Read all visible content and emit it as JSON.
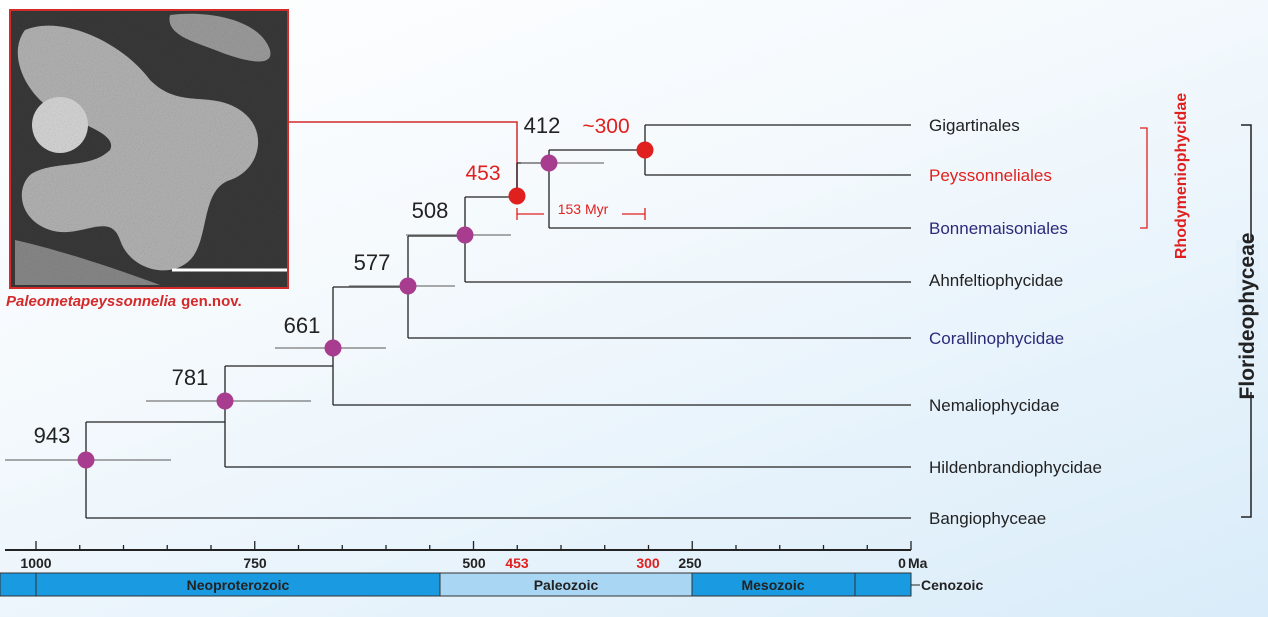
{
  "figure": {
    "photo_caption": {
      "genus": "Paleometapeyssonnelia",
      "suffix": "gen.nov."
    },
    "nodes": [
      "943",
      "781",
      "661",
      "577",
      "508",
      "453",
      "412",
      "~300"
    ],
    "leaves": [
      "Gigartinales",
      "Peyssonneliales",
      "Bonnemaisoniales",
      "Ahnfeltiophycidae",
      "Corallinophycidae",
      "Nemaliophycidae",
      "Hildenbrandiophycidae",
      "Bangiophyceae"
    ],
    "interval_label": "153 Myr",
    "clades": [
      "Rhodymeniophycidae",
      "Florideophyceae"
    ],
    "axis": {
      "ticks": [
        "1000",
        "750",
        "500",
        "453",
        "300",
        "250",
        "0"
      ],
      "unit": "Ma"
    },
    "eras": [
      "Neoproterozoic",
      "Paleozoic",
      "Mesozoic",
      "Cenozoic"
    ]
  }
}
